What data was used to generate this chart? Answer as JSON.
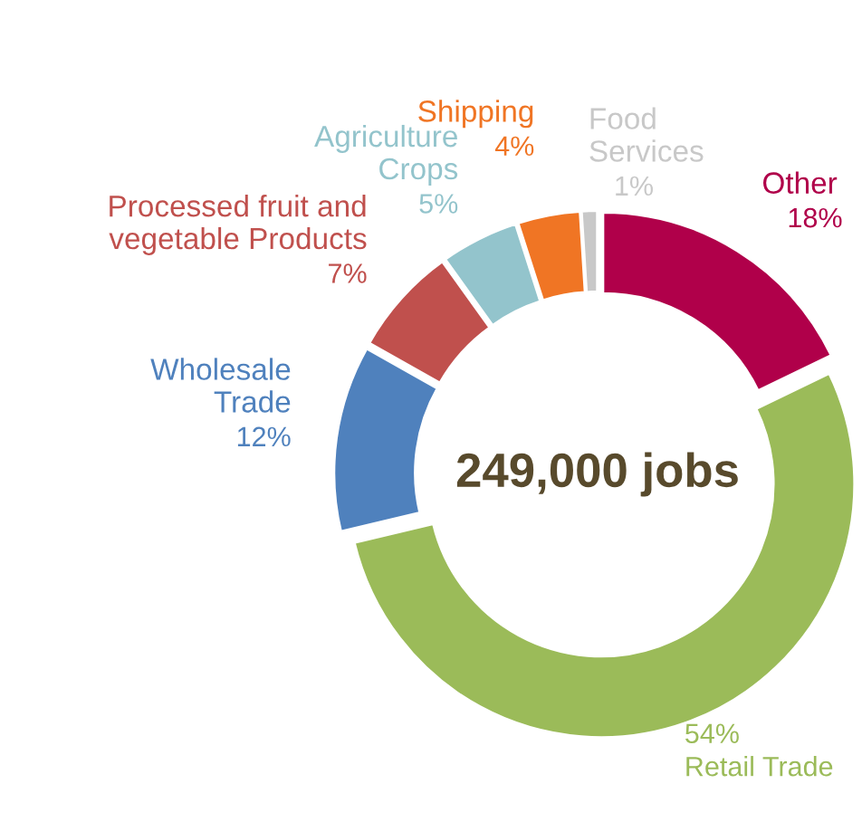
{
  "chart_data": {
    "type": "donut",
    "categories": [
      "Other",
      "Retail Trade",
      "Wholesale\nTrade",
      "Processed fruit and\nvegetable Products",
      "Agriculture\nCrops",
      "Shipping",
      "Food\nServices"
    ],
    "values": [
      18,
      54,
      12,
      7,
      5,
      4,
      1
    ],
    "value_labels": [
      "18%",
      "54%",
      "12%",
      "7%",
      "5%",
      "4%",
      "1%"
    ],
    "colors": [
      "#b0004a",
      "#9bbb59",
      "#4f81bd",
      "#c0504d",
      "#93c4cc",
      "#f07524",
      "#c8c8c8"
    ],
    "annotations": [
      "249,000 jobs"
    ],
    "legend": false
  }
}
